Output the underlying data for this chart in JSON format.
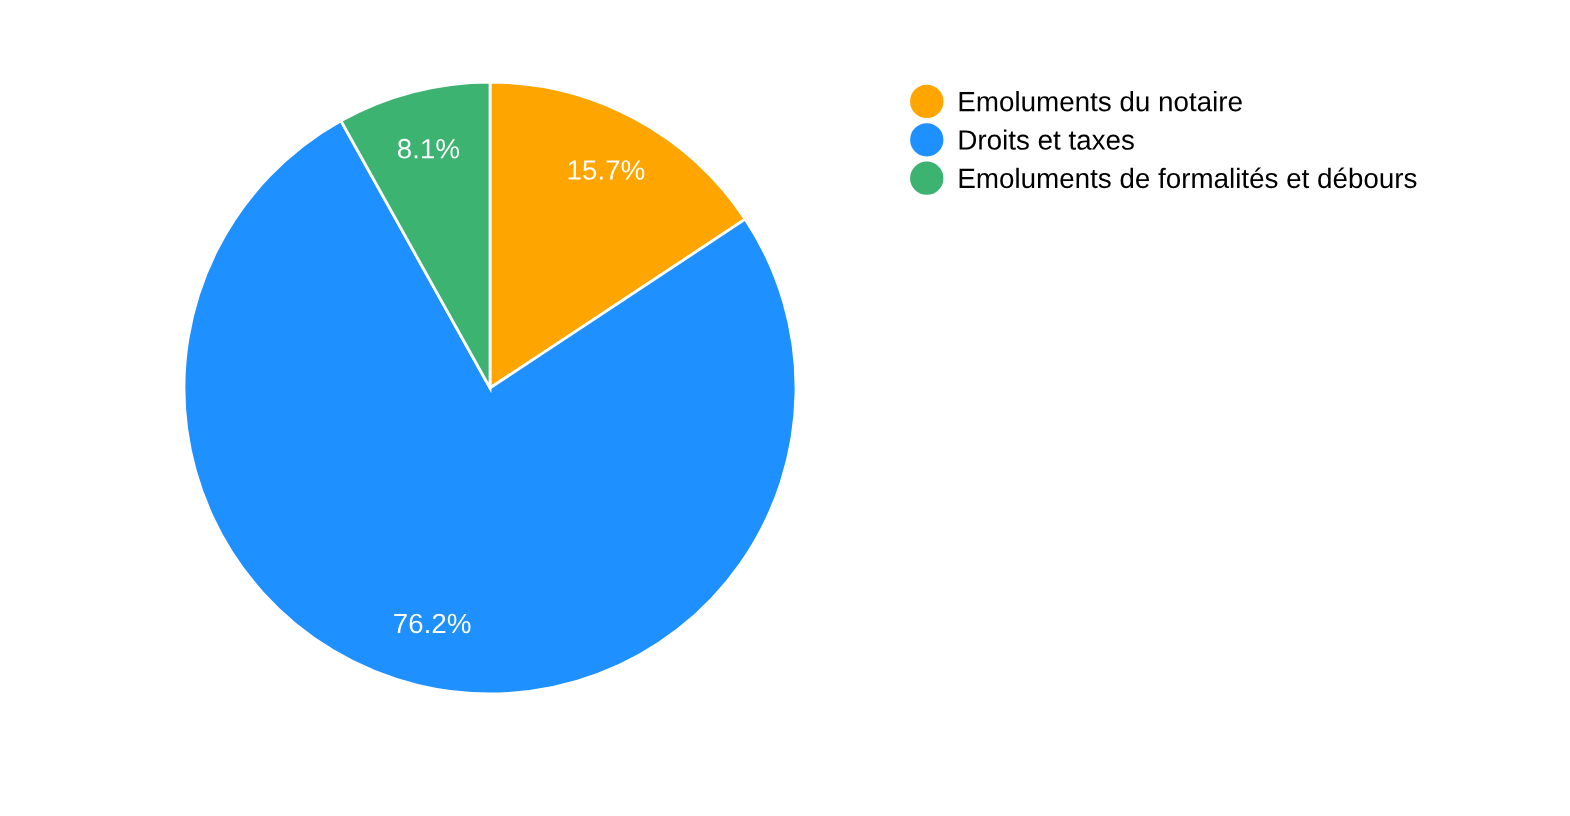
{
  "chart_data": {
    "type": "pie",
    "categories": [
      "Emoluments du notaire",
      "Droits et taxes",
      "Emoluments de formalités et débours"
    ],
    "values": [
      15.7,
      76.2,
      8.1
    ],
    "value_labels": [
      "15.7%",
      "76.2%",
      "8.1%"
    ],
    "colors": [
      "#ffa500",
      "#1e90ff",
      "#3cb371"
    ],
    "legend": "right"
  }
}
